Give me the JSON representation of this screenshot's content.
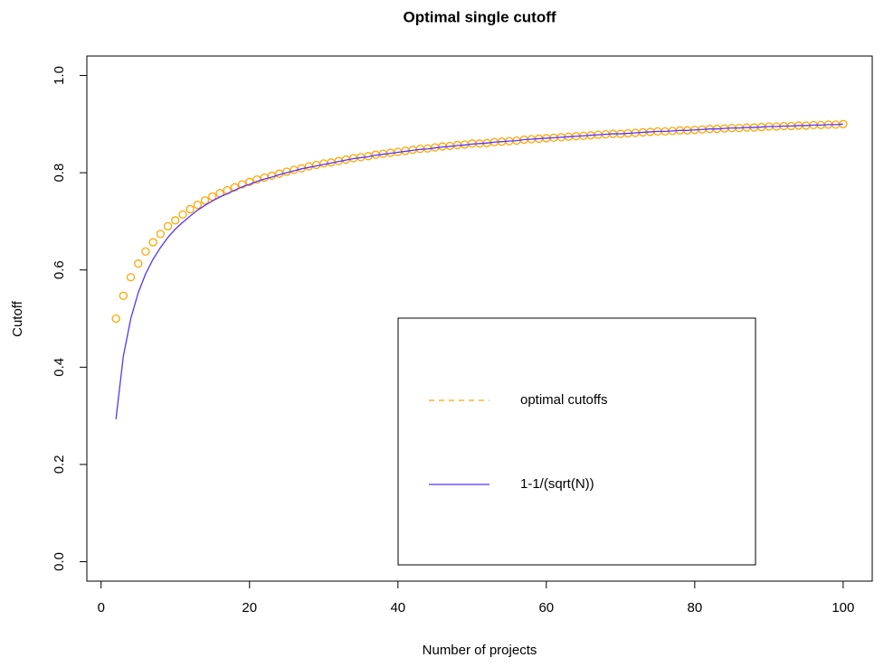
{
  "chart_data": {
    "type": "scatter",
    "title": "Optimal single cutoff",
    "x_label": "Number of projects",
    "y_label": "Cutoff",
    "x": [
      2,
      3,
      4,
      5,
      6,
      7,
      8,
      9,
      10,
      11,
      12,
      13,
      14,
      15,
      16,
      17,
      18,
      19,
      20,
      21,
      22,
      23,
      24,
      25,
      26,
      27,
      28,
      29,
      30,
      31,
      32,
      33,
      34,
      35,
      36,
      37,
      38,
      39,
      40,
      41,
      42,
      43,
      44,
      45,
      46,
      47,
      48,
      49,
      50,
      51,
      52,
      53,
      54,
      55,
      56,
      57,
      58,
      59,
      60,
      61,
      62,
      63,
      64,
      65,
      66,
      67,
      68,
      69,
      70,
      71,
      72,
      73,
      74,
      75,
      76,
      77,
      78,
      79,
      80,
      81,
      82,
      83,
      84,
      85,
      86,
      87,
      88,
      89,
      90,
      91,
      92,
      93,
      94,
      95,
      96,
      97,
      98,
      99,
      100
    ],
    "series": [
      {
        "name": "optimal cutoffs",
        "color": "#FFA500",
        "mark": "points",
        "legend_line": "dashed",
        "values": [
          0.5,
          0.547,
          0.585,
          0.613,
          0.638,
          0.657,
          0.674,
          0.69,
          0.702,
          0.714,
          0.725,
          0.734,
          0.743,
          0.751,
          0.758,
          0.764,
          0.77,
          0.776,
          0.781,
          0.786,
          0.79,
          0.794,
          0.798,
          0.802,
          0.806,
          0.809,
          0.813,
          0.816,
          0.819,
          0.821,
          0.824,
          0.827,
          0.83,
          0.832,
          0.834,
          0.837,
          0.839,
          0.841,
          0.843,
          0.845,
          0.847,
          0.849,
          0.85,
          0.852,
          0.854,
          0.855,
          0.857,
          0.858,
          0.86,
          0.86,
          0.861,
          0.863,
          0.864,
          0.865,
          0.866,
          0.868,
          0.869,
          0.87,
          0.871,
          0.872,
          0.873,
          0.874,
          0.875,
          0.876,
          0.877,
          0.878,
          0.879,
          0.88,
          0.88,
          0.881,
          0.882,
          0.883,
          0.884,
          0.885,
          0.885,
          0.886,
          0.887,
          0.887,
          0.888,
          0.889,
          0.89,
          0.89,
          0.891,
          0.892,
          0.892,
          0.893,
          0.893,
          0.894,
          0.895,
          0.895,
          0.896,
          0.896,
          0.897,
          0.897,
          0.898,
          0.898,
          0.899,
          0.899,
          0.9
        ]
      },
      {
        "name": "1-1/(sqrt(N))",
        "color": "#5533ff",
        "mark": "line",
        "legend_line": "solid",
        "values": [
          0.293,
          0.423,
          0.5,
          0.553,
          0.592,
          0.622,
          0.646,
          0.667,
          0.684,
          0.698,
          0.711,
          0.723,
          0.733,
          0.742,
          0.75,
          0.757,
          0.764,
          0.771,
          0.776,
          0.782,
          0.787,
          0.791,
          0.796,
          0.8,
          0.804,
          0.808,
          0.811,
          0.814,
          0.817,
          0.82,
          0.823,
          0.826,
          0.829,
          0.831,
          0.833,
          0.836,
          0.838,
          0.84,
          0.842,
          0.844,
          0.846,
          0.848,
          0.849,
          0.851,
          0.853,
          0.854,
          0.856,
          0.857,
          0.859,
          0.86,
          0.861,
          0.863,
          0.864,
          0.865,
          0.866,
          0.868,
          0.869,
          0.87,
          0.871,
          0.872,
          0.873,
          0.874,
          0.875,
          0.876,
          0.877,
          0.878,
          0.879,
          0.88,
          0.88,
          0.881,
          0.882,
          0.883,
          0.884,
          0.885,
          0.885,
          0.886,
          0.887,
          0.887,
          0.888,
          0.889,
          0.89,
          0.89,
          0.891,
          0.892,
          0.892,
          0.893,
          0.893,
          0.894,
          0.895,
          0.895,
          0.896,
          0.896,
          0.897,
          0.897,
          0.898,
          0.898,
          0.899,
          0.899,
          0.9
        ]
      }
    ],
    "xlim": [
      -1.92,
      103.92
    ],
    "ylim": [
      -0.04,
      1.04
    ],
    "xticks": [
      0,
      20,
      40,
      60,
      80,
      100
    ],
    "yticks": [
      {
        "value": 0,
        "label": "0.0"
      },
      0.2,
      0.4,
      0.6,
      0.8,
      {
        "value": 1,
        "label": "1.0"
      }
    ]
  }
}
